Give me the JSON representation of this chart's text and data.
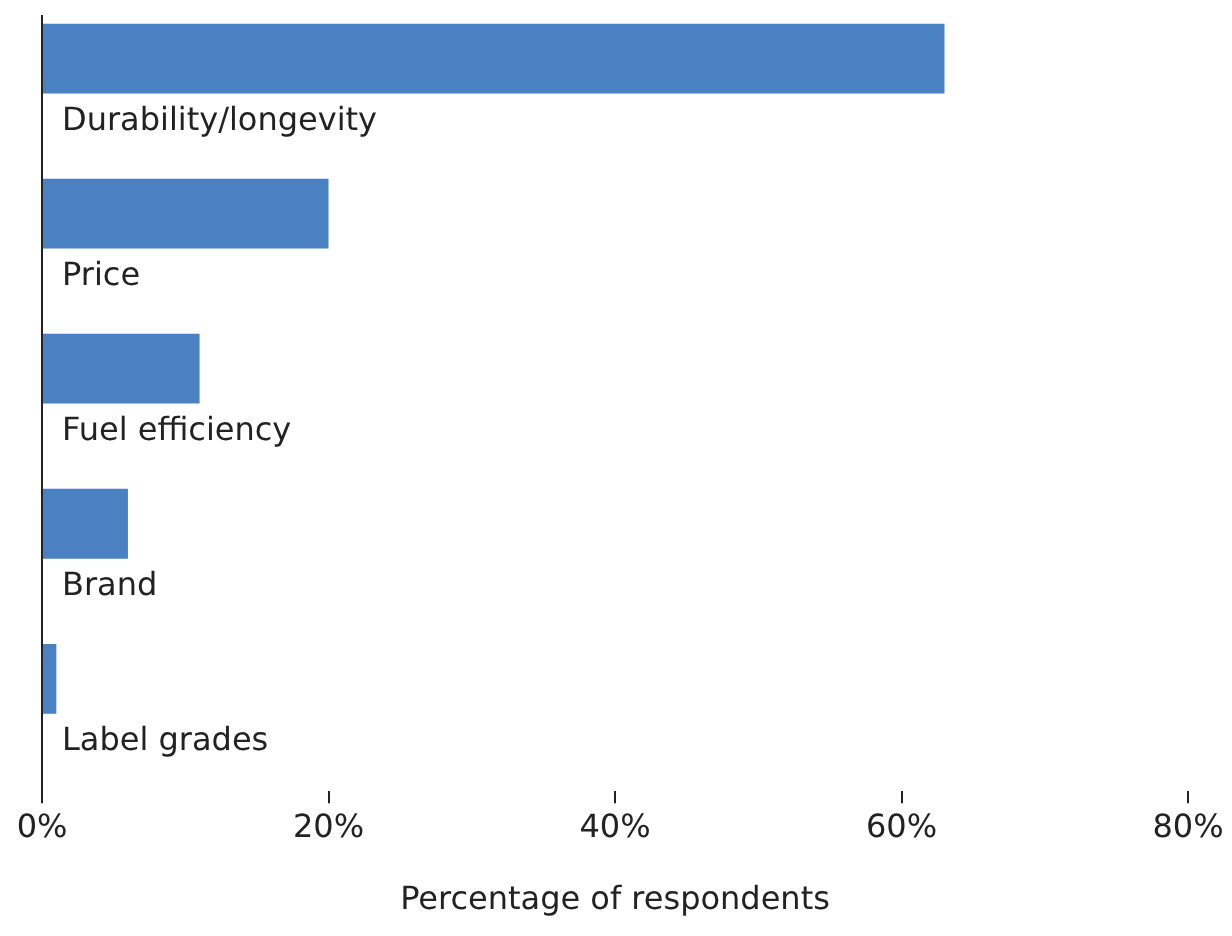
{
  "chart_data": {
    "type": "bar",
    "orientation": "horizontal",
    "categories": [
      "Durability/longevity",
      "Price",
      "Fuel efficiency",
      "Brand",
      "Label grades"
    ],
    "values": [
      63,
      20,
      11,
      6,
      1
    ],
    "color": "#4a81c3",
    "xlabel": "Percentage of respondents",
    "xlim": [
      0,
      80
    ],
    "xticks": [
      {
        "value": 0,
        "label": "0%"
      },
      {
        "value": 20,
        "label": "20%"
      },
      {
        "value": 40,
        "label": "40%"
      },
      {
        "value": 60,
        "label": "60%"
      },
      {
        "value": 80,
        "label": "80%"
      }
    ]
  }
}
